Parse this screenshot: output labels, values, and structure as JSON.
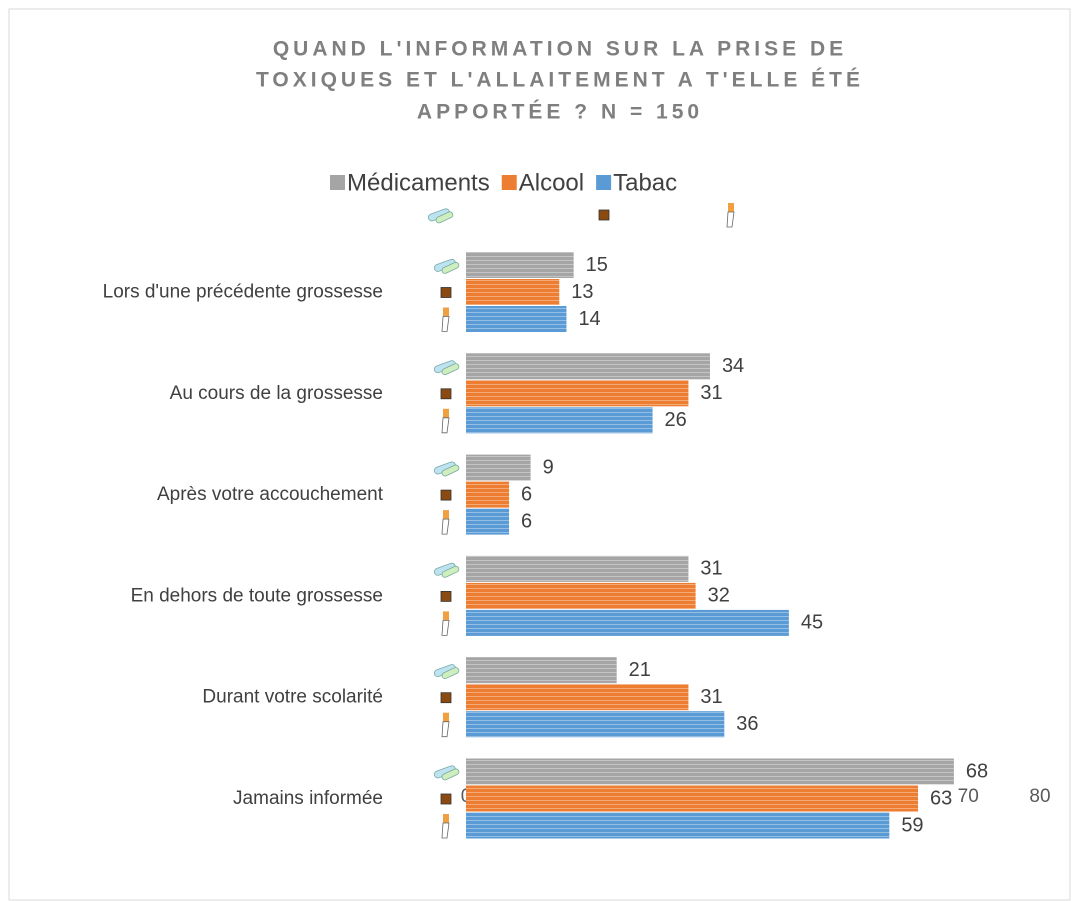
{
  "chart_data": {
    "type": "bar",
    "orientation": "horizontal",
    "title": [
      "QUAND L'INFORMATION SUR LA PRISE DE",
      "TOXIQUES ET L'ALLAITEMENT A T'ELLE ÉTÉ",
      "APPORTÉE ? N = 150"
    ],
    "categories": [
      "Lors d'une précédente grossesse",
      "Au cours de la grossesse",
      "Après votre accouchement",
      "En dehors de toute grossesse",
      "Durant votre scolarité",
      "Jamains informée"
    ],
    "series": [
      {
        "name": "Médicaments",
        "color": "#a5a5a5",
        "values": [
          15,
          34,
          9,
          31,
          21,
          68
        ]
      },
      {
        "name": "Alcool",
        "color": "#ed7d31",
        "values": [
          13,
          31,
          6,
          32,
          31,
          63
        ]
      },
      {
        "name": "Tabac",
        "color": "#5b9bd5",
        "values": [
          14,
          26,
          6,
          45,
          36,
          59
        ]
      }
    ],
    "xlim": [
      0,
      80
    ],
    "xticks": [
      0,
      10,
      20,
      30,
      40,
      50,
      60,
      70,
      80
    ],
    "legend": "top",
    "grid": false
  }
}
